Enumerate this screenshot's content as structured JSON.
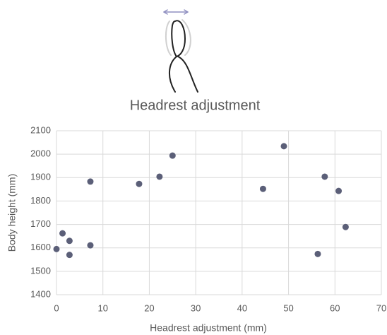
{
  "chart_data": {
    "type": "scatter",
    "title": "Headrest adjustment",
    "x_label": "Headrest adjustment (mm)",
    "y_label": "Body height (mm)",
    "series": [
      {
        "color": "#5b5f78",
        "x": [
          0,
          1.3,
          2.8,
          2.8,
          7.3,
          7.3,
          17.8,
          22.2,
          25,
          44.5,
          49,
          56.3,
          57.8,
          60.8,
          62.3
        ],
        "values": [
          1595,
          1662,
          1630,
          1570,
          1883,
          1611,
          1873,
          1904,
          1994,
          1852,
          2034,
          1574,
          1904,
          1843,
          1689
        ]
      }
    ],
    "xlim": [
      0,
      70
    ],
    "xticks": [
      0,
      10,
      20,
      30,
      40,
      50,
      60,
      70
    ],
    "ylim": [
      1400,
      2100
    ],
    "yticks": [
      1400,
      1500,
      1600,
      1700,
      1800,
      1900,
      2000,
      2100
    ],
    "grid": true
  }
}
